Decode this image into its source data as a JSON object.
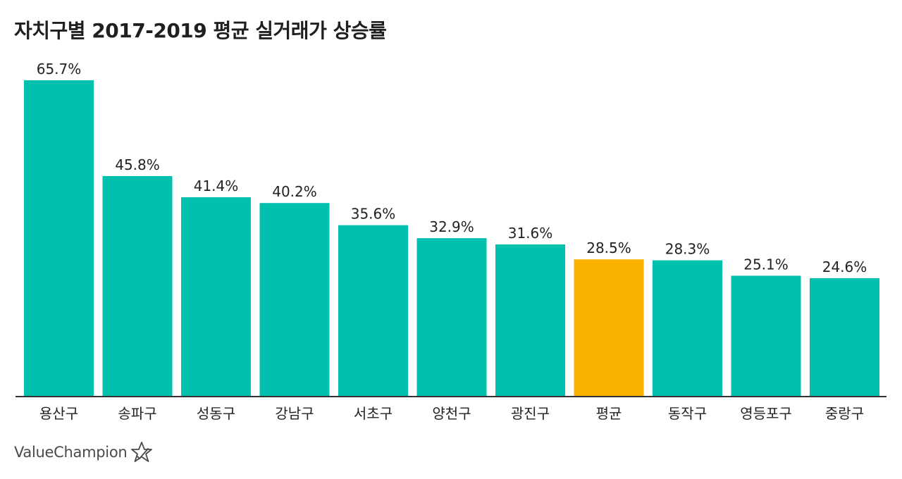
{
  "chart_data": {
    "type": "bar",
    "title": "자치구별 2017-2019 평균 실거래가 상승률",
    "xlabel": "",
    "ylabel": "",
    "ylim": [
      0,
      70
    ],
    "grid": false,
    "categories": [
      "용산구",
      "송파구",
      "성동구",
      "강남구",
      "서초구",
      "양천구",
      "광진구",
      "평균",
      "동작구",
      "영등포구",
      "중랑구"
    ],
    "values": [
      65.7,
      45.8,
      41.4,
      40.2,
      35.6,
      32.9,
      31.6,
      28.5,
      28.3,
      25.1,
      24.6
    ],
    "value_labels": [
      "65.7%",
      "45.8%",
      "41.4%",
      "40.2%",
      "35.6%",
      "32.9%",
      "31.6%",
      "28.5%",
      "28.3%",
      "25.1%",
      "24.6%"
    ],
    "highlight_category": "평균",
    "colors": {
      "default": "#02c0ae",
      "highlight": "#f9b200",
      "axis": "#333333"
    }
  },
  "branding": {
    "logo_text": "ValueChampion",
    "logo_icon": "star-outline-icon"
  }
}
